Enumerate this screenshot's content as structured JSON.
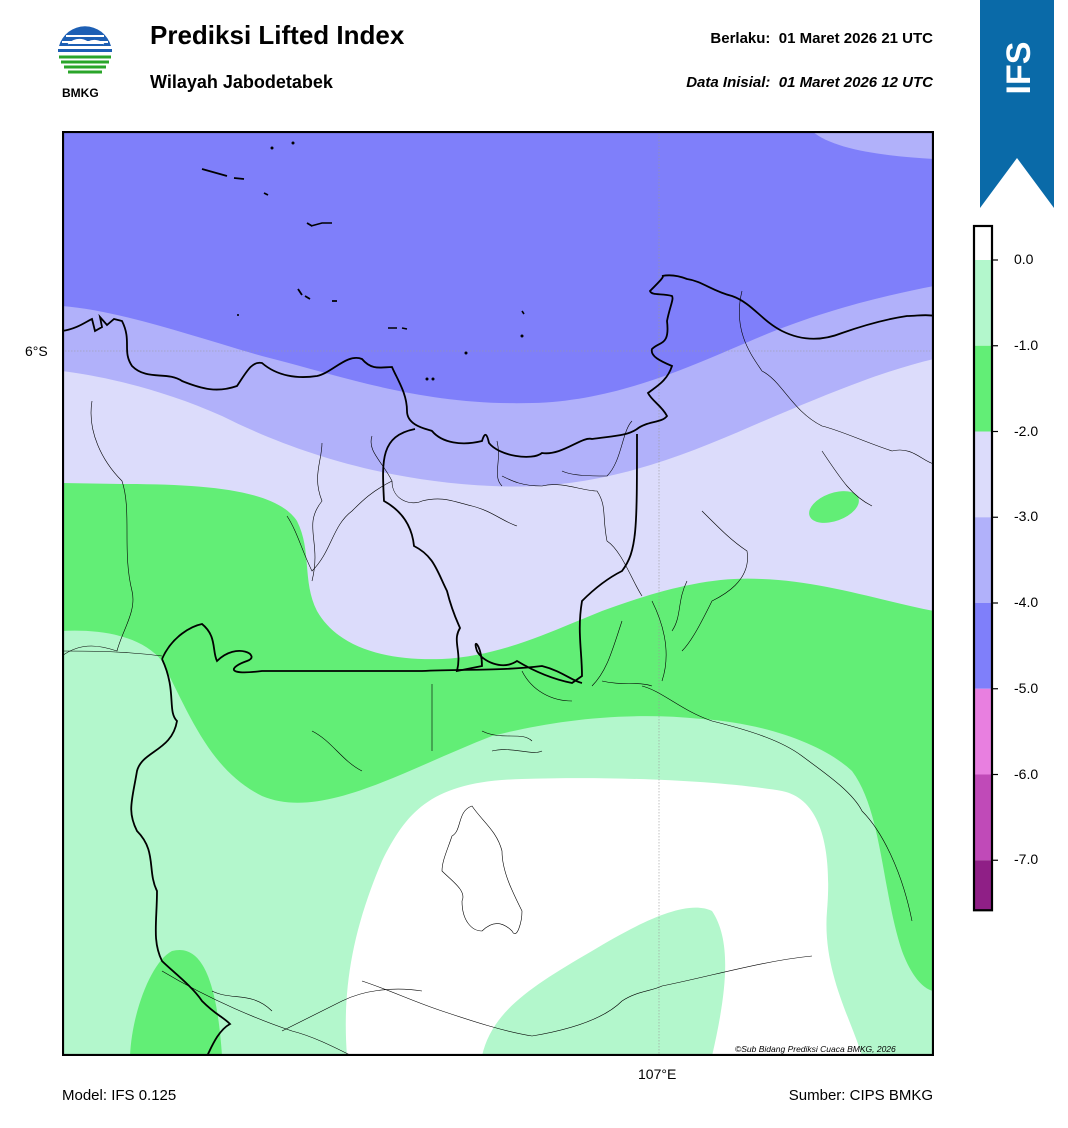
{
  "header": {
    "title": "Prediksi Lifted Index",
    "subtitle": "Wilayah Jabodetabek",
    "valid": "Berlaku:  01 Maret 2026 21 UTC",
    "initial": "Data Inisial:  01 Maret 2026 12 UTC"
  },
  "logo": {
    "text": "BMKG"
  },
  "ribbon": {
    "label": "IFS",
    "color": "#0a6aa8"
  },
  "axes": {
    "lat_label": "6°S",
    "lon_label": "107°E"
  },
  "footer": {
    "model": "Model: IFS 0.125",
    "source": "Sumber: CIPS BMKG"
  },
  "copyright": "©Sub Bidang Prediksi Cuaca BMKG, 2026",
  "legend": {
    "ticks": [
      "0.0",
      "-1.0",
      "-2.0",
      "-3.0",
      "-4.0",
      "-5.0",
      "-6.0",
      "-7.0"
    ],
    "bins": [
      {
        "range": "> 0",
        "color": "#ffffff"
      },
      {
        "range": "0 to -1",
        "color": "#b3f7cc"
      },
      {
        "range": "-1 to -2",
        "color": "#62ee76"
      },
      {
        "range": "-2 to -3",
        "color": "#dcdcfb"
      },
      {
        "range": "-3 to -4",
        "color": "#b1b1fa"
      },
      {
        "range": "-4 to -5",
        "color": "#7f7ffa"
      },
      {
        "range": "-5 to -6",
        "color": "#e87fe0"
      },
      {
        "range": "-6 to -7",
        "color": "#c04ab8"
      },
      {
        "range": "< -7",
        "color": "#8f1f86"
      }
    ]
  }
}
